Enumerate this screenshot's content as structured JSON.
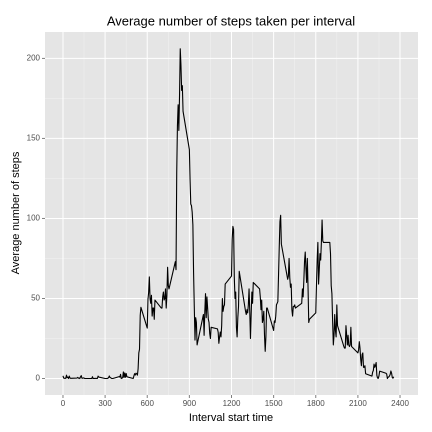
{
  "chart_data": {
    "type": "line",
    "title": "Average number of steps taken per interval",
    "x_label": "Interval start time",
    "y_label": "Average number of steps",
    "color": "#000000",
    "grid": true,
    "xlim": [
      -128,
      2528
    ],
    "xticks": [
      0,
      300,
      600,
      900,
      1200,
      1500,
      1800,
      2100,
      2400
    ],
    "ylim": [
      -10.3,
      216.5
    ],
    "yticks": [
      0,
      50,
      100,
      150,
      200
    ],
    "x": [
      0,
      5,
      10,
      15,
      20,
      25,
      30,
      35,
      40,
      45,
      50,
      55,
      100,
      105,
      110,
      115,
      120,
      125,
      130,
      135,
      140,
      145,
      150,
      155,
      200,
      205,
      210,
      215,
      220,
      225,
      230,
      235,
      240,
      245,
      250,
      255,
      300,
      305,
      310,
      315,
      320,
      325,
      330,
      335,
      340,
      345,
      350,
      355,
      400,
      405,
      410,
      415,
      420,
      425,
      430,
      435,
      440,
      445,
      450,
      455,
      500,
      505,
      510,
      515,
      520,
      525,
      530,
      535,
      540,
      545,
      550,
      555,
      600,
      605,
      610,
      615,
      620,
      625,
      630,
      635,
      640,
      645,
      650,
      655,
      700,
      705,
      710,
      715,
      720,
      725,
      730,
      735,
      740,
      745,
      750,
      755,
      800,
      805,
      810,
      815,
      820,
      825,
      830,
      835,
      840,
      845,
      850,
      855,
      900,
      905,
      910,
      915,
      920,
      925,
      930,
      935,
      940,
      945,
      950,
      955,
      1000,
      1005,
      1010,
      1015,
      1020,
      1025,
      1030,
      1035,
      1040,
      1045,
      1050,
      1055,
      1100,
      1105,
      1110,
      1115,
      1120,
      1125,
      1130,
      1135,
      1140,
      1145,
      1150,
      1155,
      1200,
      1205,
      1210,
      1215,
      1220,
      1225,
      1230,
      1235,
      1240,
      1245,
      1250,
      1255,
      1300,
      1305,
      1310,
      1315,
      1320,
      1325,
      1330,
      1335,
      1340,
      1345,
      1350,
      1355,
      1400,
      1405,
      1410,
      1415,
      1420,
      1425,
      1430,
      1435,
      1440,
      1445,
      1450,
      1455,
      1500,
      1505,
      1510,
      1515,
      1520,
      1525,
      1530,
      1535,
      1540,
      1545,
      1550,
      1555,
      1600,
      1605,
      1610,
      1615,
      1620,
      1625,
      1630,
      1635,
      1640,
      1645,
      1650,
      1655,
      1700,
      1705,
      1710,
      1715,
      1720,
      1725,
      1730,
      1735,
      1740,
      1745,
      1750,
      1755,
      1800,
      1805,
      1810,
      1815,
      1820,
      1825,
      1830,
      1835,
      1840,
      1845,
      1850,
      1855,
      1900,
      1905,
      1910,
      1915,
      1920,
      1925,
      1930,
      1935,
      1940,
      1945,
      1950,
      1955,
      2000,
      2005,
      2010,
      2015,
      2020,
      2025,
      2030,
      2035,
      2040,
      2045,
      2050,
      2055,
      2100,
      2105,
      2110,
      2115,
      2120,
      2125,
      2130,
      2135,
      2140,
      2145,
      2150,
      2155,
      2200,
      2205,
      2210,
      2215,
      2220,
      2225,
      2230,
      2235,
      2240,
      2245,
      2250,
      2255,
      2300,
      2305,
      2310,
      2315,
      2320,
      2325,
      2330,
      2335,
      2340,
      2345,
      2350,
      2355
    ],
    "values": [
      1.7,
      0.3,
      0.1,
      0.2,
      0.1,
      2.1,
      0.5,
      0.9,
      0,
      1.5,
      0.3,
      0.1,
      0.3,
      0.7,
      0.2,
      0.3,
      0,
      1.1,
      1.8,
      0.2,
      0.2,
      0.4,
      0.3,
      0,
      0,
      0,
      1.1,
      0,
      0,
      0.1,
      0,
      0.2,
      0,
      0,
      1.5,
      0.9,
      0,
      0,
      0,
      0,
      0.2,
      0.6,
      1.6,
      0.6,
      0.5,
      0.1,
      0,
      0,
      1.2,
      0.9,
      2.6,
      0,
      0.3,
      0.4,
      4.1,
      0.7,
      3.5,
      0.8,
      3.1,
      1.1,
      0,
      1.6,
      3,
      2.2,
      3.3,
      3,
      2.1,
      6.1,
      16,
      18.3,
      39.5,
      44.5,
      31.5,
      49.3,
      53.8,
      63.5,
      50,
      47,
      52,
      39,
      44,
      44,
      37,
      49,
      44,
      44,
      51,
      54,
      49,
      50,
      56,
      44,
      52,
      69.5,
      58,
      56,
      73,
      68,
      129,
      158,
      171,
      155,
      177,
      206,
      196,
      180,
      183,
      167,
      143,
      124,
      109,
      108,
      104,
      96,
      66,
      45,
      24,
      38,
      35,
      21,
      40,
      27,
      42,
      53,
      38,
      51,
      44,
      37,
      35,
      28,
      25,
      32,
      31,
      29,
      22,
      26,
      29,
      26,
      33,
      50,
      42,
      45,
      46,
      59,
      64,
      87,
      95,
      93,
      63,
      50,
      54,
      32,
      26,
      38,
      45,
      67,
      42,
      40,
      43,
      41,
      46,
      56,
      42,
      25,
      40,
      54,
      47,
      60,
      56,
      51,
      43,
      49,
      35,
      37,
      42,
      27,
      17,
      26,
      44,
      44,
      30,
      36,
      35,
      39,
      46,
      47,
      48,
      65,
      82,
      98,
      102,
      84,
      62,
      64,
      75,
      63,
      57,
      59,
      43,
      39,
      45,
      45,
      46,
      44,
      47,
      56,
      51,
      61,
      73,
      79,
      69,
      60,
      75,
      57,
      35,
      37,
      41,
      58,
      74,
      85,
      59,
      68,
      78,
      74,
      85,
      99,
      86,
      85,
      85,
      78,
      58,
      53,
      36,
      21,
      27,
      40,
      30,
      26,
      46,
      33,
      20,
      19,
      19,
      33,
      27,
      21,
      27,
      21,
      20,
      21,
      32,
      20,
      16,
      18,
      23,
      19,
      12,
      8,
      15,
      16,
      7,
      7,
      8,
      3,
      1.5,
      4,
      5,
      9,
      7,
      8,
      10,
      2,
      0.3,
      0.1,
      1.6,
      4.6,
      3.3,
      2.8,
      0,
      0.8,
      1,
      1.6,
      2.6,
      4.7,
      3.3,
      0.6,
      0.2,
      1.1
    ]
  }
}
